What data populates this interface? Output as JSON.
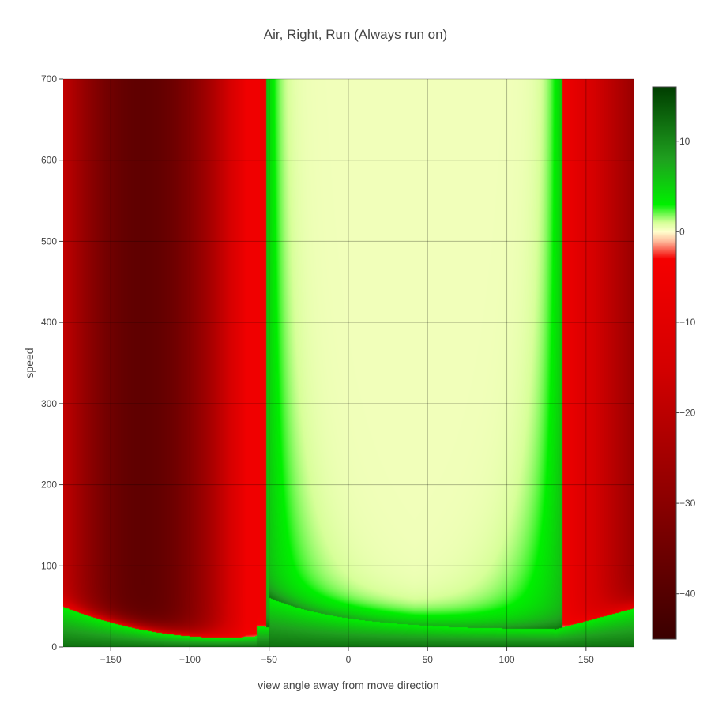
{
  "chart_data": {
    "type": "heatmap",
    "title": "Air, Right, Run (Always run on)",
    "xlabel": "view angle away from move direction",
    "ylabel": "speed",
    "xlim": [
      -180,
      180
    ],
    "ylim": [
      0,
      700
    ],
    "x_ticks": [
      -150,
      -100,
      -50,
      0,
      50,
      100,
      150
    ],
    "y_ticks": [
      0,
      100,
      200,
      300,
      400,
      500,
      600,
      700
    ],
    "colorbar": {
      "range": [
        -45,
        16
      ],
      "ticks": [
        10,
        0,
        -10,
        -20,
        -30,
        -40
      ],
      "colorscale": [
        [
          -45,
          "#3a0000"
        ],
        [
          -30,
          "#8a0000"
        ],
        [
          -15,
          "#d40000"
        ],
        [
          -3,
          "#f50000"
        ],
        [
          -1,
          "#ffbf9f"
        ],
        [
          0,
          "#ffffcc"
        ],
        [
          1,
          "#d7ff99"
        ],
        [
          3,
          "#00f000"
        ],
        [
          8,
          "#1fa01f"
        ],
        [
          16,
          "#003d00"
        ]
      ]
    },
    "regions": [
      {
        "x_range": [
          -180,
          -52
        ],
        "speed_min": "boundary curve rising from about 12 at x=-80 to about 50 at x=-180",
        "value_range": [
          -45,
          -5
        ],
        "description": "negative (red), darkest near x=-130"
      },
      {
        "x_range": [
          -52,
          135
        ],
        "speed_min": 20,
        "value": 0.3,
        "description": "near zero (pale yellow) above the curved boundary"
      },
      {
        "x_range": [
          135,
          180
        ],
        "speed_min": "boundary curve rising to about 48 at x=180",
        "value_range": [
          -30,
          -5
        ],
        "description": "negative (red), darkening toward x=180"
      },
      {
        "x_range": [
          -180,
          180
        ],
        "speed_max": "below boundary curve",
        "value_range": [
          2,
          12
        ],
        "description": "positive (green) band near low speeds and along vertical edges at x≈-50 and x≈135"
      }
    ]
  }
}
